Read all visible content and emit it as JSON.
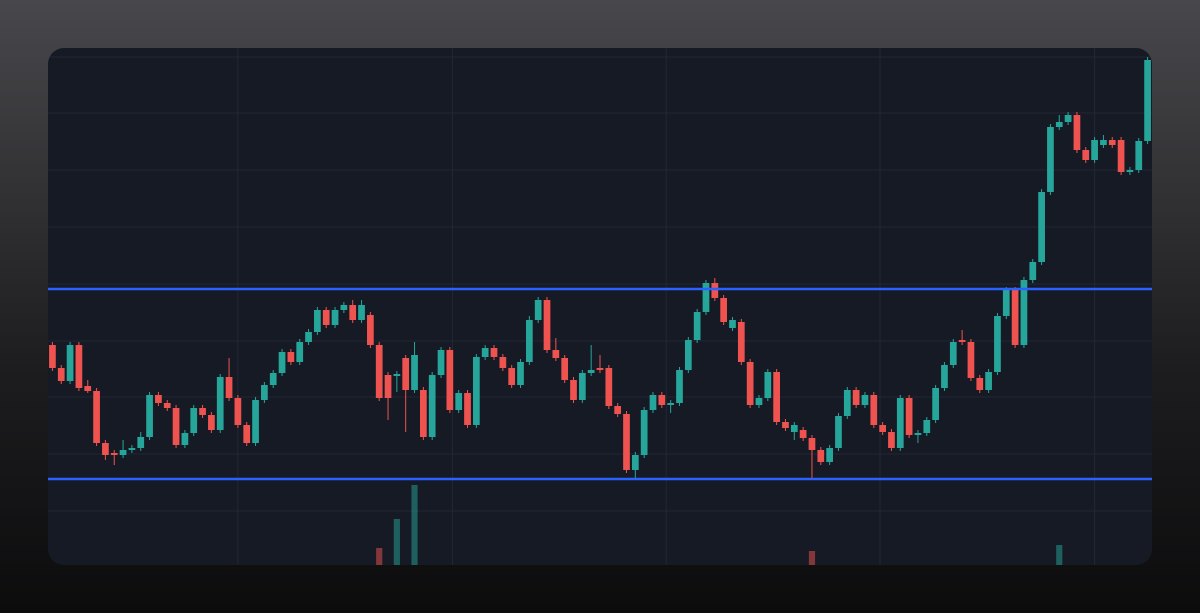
{
  "chart_data": {
    "type": "candlestick",
    "open": [
      220,
      197,
      184,
      220,
      179,
      174,
      122,
      112,
      110,
      115,
      117,
      128,
      170,
      162,
      157,
      120,
      132,
      157,
      150,
      135,
      188,
      167,
      140,
      122,
      165,
      180,
      192,
      213,
      203,
      223,
      233,
      255,
      240,
      255,
      260,
      245,
      250,
      220,
      190,
      189,
      207,
      175,
      175,
      128,
      190,
      215,
      155,
      172,
      140,
      208,
      217,
      208,
      197,
      180,
      203,
      245,
      265,
      215,
      207,
      185,
      165,
      192,
      197,
      197,
      159,
      151,
      95,
      110,
      155,
      170,
      160,
      162,
      195,
      225,
      253,
      282,
      267,
      237,
      243,
      203,
      160,
      167,
      193,
      143,
      133,
      135,
      127,
      115,
      103,
      117,
      149,
      175,
      160,
      170,
      140,
      133,
      117,
      167,
      130,
      132,
      145,
      177,
      200,
      225,
      223,
      187,
      175,
      193,
      249,
      275,
      220,
      285,
      303,
      373,
      438,
      443,
      450,
      415,
      405,
      420,
      425,
      425,
      393,
      395,
      424
    ],
    "high": [
      223,
      200,
      223,
      223,
      185,
      177,
      125,
      115,
      125,
      120,
      133,
      173,
      173,
      165,
      160,
      135,
      160,
      160,
      153,
      191,
      207,
      170,
      143,
      168,
      183,
      195,
      216,
      216,
      226,
      236,
      258,
      258,
      258,
      263,
      265,
      265,
      253,
      223,
      193,
      194,
      210,
      223,
      178,
      193,
      218,
      218,
      175,
      175,
      211,
      220,
      220,
      211,
      200,
      206,
      249,
      268,
      268,
      227,
      210,
      188,
      195,
      220,
      210,
      200,
      162,
      154,
      113,
      158,
      173,
      173,
      165,
      198,
      228,
      256,
      285,
      287,
      270,
      248,
      246,
      206,
      170,
      196,
      196,
      146,
      143,
      138,
      130,
      118,
      120,
      152,
      178,
      178,
      173,
      173,
      143,
      136,
      170,
      170,
      135,
      148,
      180,
      203,
      226,
      235,
      226,
      190,
      196,
      252,
      278,
      278,
      288,
      306,
      376,
      441,
      450,
      453,
      453,
      418,
      428,
      430,
      428,
      428,
      398,
      427,
      508
    ],
    "low": [
      194,
      181,
      181,
      174,
      172,
      119,
      105,
      100,
      107,
      112,
      114,
      125,
      159,
      154,
      117,
      117,
      129,
      147,
      132,
      132,
      164,
      137,
      119,
      119,
      162,
      177,
      189,
      200,
      200,
      220,
      230,
      237,
      237,
      252,
      242,
      242,
      217,
      164,
      145,
      173,
      133,
      172,
      125,
      125,
      187,
      152,
      152,
      137,
      137,
      205,
      205,
      194,
      177,
      177,
      200,
      242,
      212,
      204,
      182,
      162,
      162,
      189,
      192,
      156,
      148,
      92,
      87,
      107,
      152,
      157,
      152,
      159,
      192,
      222,
      250,
      264,
      240,
      234,
      200,
      157,
      157,
      164,
      140,
      134,
      125,
      124,
      85,
      100,
      100,
      114,
      146,
      157,
      157,
      137,
      130,
      114,
      114,
      127,
      122,
      129,
      142,
      174,
      197,
      220,
      184,
      172,
      172,
      190,
      246,
      217,
      217,
      282,
      300,
      370,
      435,
      440,
      412,
      402,
      402,
      417,
      417,
      390,
      390,
      392,
      421
    ],
    "close": [
      197,
      184,
      220,
      177,
      174,
      122,
      110,
      110,
      115,
      117,
      128,
      170,
      162,
      157,
      120,
      132,
      157,
      150,
      135,
      188,
      167,
      140,
      122,
      165,
      180,
      192,
      213,
      203,
      223,
      233,
      255,
      240,
      255,
      260,
      245,
      260,
      220,
      167,
      167,
      191,
      175,
      210,
      128,
      190,
      215,
      155,
      172,
      140,
      208,
      217,
      208,
      197,
      180,
      203,
      245,
      265,
      215,
      207,
      185,
      165,
      192,
      195,
      195,
      159,
      151,
      95,
      110,
      155,
      170,
      160,
      162,
      195,
      225,
      253,
      282,
      267,
      243,
      245,
      203,
      160,
      167,
      193,
      143,
      137,
      140,
      127,
      115,
      103,
      117,
      149,
      175,
      160,
      170,
      140,
      133,
      117,
      167,
      130,
      132,
      145,
      177,
      200,
      223,
      223,
      187,
      175,
      193,
      249,
      275,
      220,
      285,
      303,
      373,
      438,
      443,
      450,
      415,
      405,
      425,
      425,
      420,
      393,
      395,
      424,
      505
    ],
    "volume": [
      0,
      0,
      0,
      0,
      0,
      0,
      0,
      0,
      0,
      0,
      0,
      0,
      0,
      0,
      0,
      0,
      0,
      0,
      0,
      0,
      0,
      0,
      0,
      0,
      0,
      0,
      0,
      0,
      0,
      0,
      0,
      0,
      0,
      0,
      0,
      0,
      0,
      17,
      0,
      46,
      0,
      80,
      0,
      0,
      0,
      0,
      0,
      0,
      0,
      0,
      0,
      0,
      0,
      0,
      0,
      0,
      0,
      0,
      0,
      0,
      0,
      0,
      0,
      0,
      0,
      0,
      0,
      0,
      0,
      0,
      0,
      0,
      0,
      0,
      0,
      0,
      0,
      0,
      0,
      0,
      0,
      0,
      0,
      0,
      0,
      0,
      14,
      0,
      0,
      0,
      0,
      0,
      0,
      0,
      0,
      0,
      0,
      0,
      0,
      0,
      0,
      0,
      0,
      0,
      0,
      0,
      0,
      0,
      0,
      0,
      0,
      0,
      0,
      0,
      20,
      0,
      0,
      0,
      0,
      0,
      0,
      0,
      0,
      0,
      0
    ],
    "xlim": [
      -0.5,
      124.5
    ],
    "xticks": [
      21,
      45.3,
      69.5,
      93.7,
      118
    ],
    "ylim": [
      0,
      517
    ],
    "yticks": [
      54,
      111,
      168,
      224,
      281,
      338,
      395,
      452,
      508
    ],
    "vlim": [
      0,
      517
    ],
    "levels": [
      276,
      86
    ],
    "grid": true,
    "up_color": "#26a69a",
    "down_color": "#ef5350",
    "level_color": "#2962ff",
    "grid_color": "#232734"
  }
}
